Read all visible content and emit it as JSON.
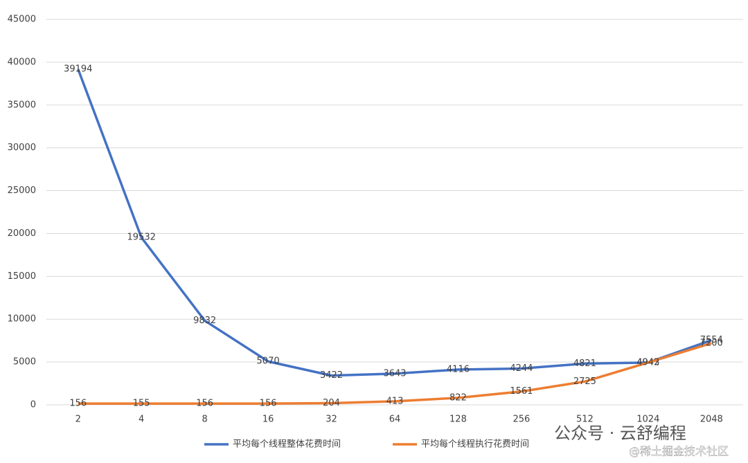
{
  "chart_data": {
    "type": "line",
    "categories": [
      "2",
      "4",
      "8",
      "16",
      "32",
      "64",
      "128",
      "256",
      "512",
      "1024",
      "2048"
    ],
    "series": [
      {
        "name": "平均每个线程整体花费时间",
        "color": "#4472c4",
        "values": [
          39194,
          19532,
          9832,
          5070,
          3422,
          3643,
          4116,
          4244,
          4821,
          4943,
          7554
        ]
      },
      {
        "name": "平均每个线程执行花费时间",
        "color": "#ed7d31",
        "values": [
          156,
          155,
          156,
          156,
          204,
          413,
          822,
          1561,
          2725,
          4942,
          7200
        ]
      }
    ],
    "ylim": [
      0,
      45000
    ],
    "yticks": [
      0,
      5000,
      10000,
      15000,
      20000,
      25000,
      30000,
      35000,
      40000,
      45000
    ],
    "grid": true,
    "legend": "bottom",
    "annotations": [
      "公众号 · 云舒编程",
      "@稀土掘金技术社区"
    ]
  }
}
